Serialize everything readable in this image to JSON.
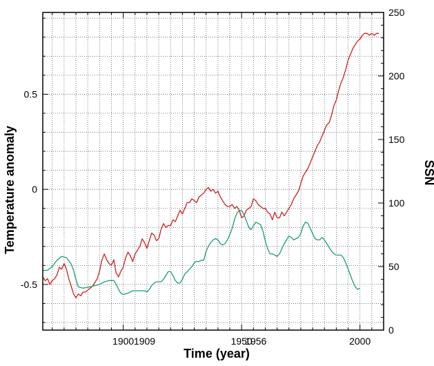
{
  "chart_data": {
    "type": "line",
    "title": "",
    "xlabel": "Time (year)",
    "ylabel_left": "Temperature anomaly",
    "ylabel_right": "SSN",
    "xlim": [
      1866,
      2010
    ],
    "ylim_left": [
      -0.74,
      0.93
    ],
    "ylim_right": [
      0,
      250
    ],
    "grid": true,
    "grid_style": "dotted",
    "x_tick_labels": [
      {
        "x": 1900,
        "label": "1900"
      },
      {
        "x": 1909,
        "label": "1909"
      },
      {
        "x": 1950,
        "label": "1950"
      },
      {
        "x": 1956,
        "label": "1956"
      },
      {
        "x": 2000,
        "label": "2000"
      }
    ],
    "y_left_tick_labels": [
      {
        "y": 0.5,
        "label": "0.5"
      },
      {
        "y": 0,
        "label": "0"
      },
      {
        "y": -0.5,
        "label": "-0.5"
      }
    ],
    "y_right_tick_labels": [
      {
        "y": 0,
        "label": "0"
      },
      {
        "y": 50,
        "label": "50"
      },
      {
        "y": 100,
        "label": "100"
      },
      {
        "y": 150,
        "label": "150"
      },
      {
        "y": 200,
        "label": "200"
      },
      {
        "y": 250,
        "label": "250"
      }
    ],
    "series": [
      {
        "axis": "left",
        "color": "#cc1f1f",
        "points": [
          [
            1866,
            -0.46
          ],
          [
            1867,
            -0.48
          ],
          [
            1868,
            -0.47
          ],
          [
            1869,
            -0.5
          ],
          [
            1870,
            -0.48
          ],
          [
            1871,
            -0.47
          ],
          [
            1872,
            -0.45
          ],
          [
            1873,
            -0.41
          ],
          [
            1874,
            -0.42
          ],
          [
            1875,
            -0.39
          ],
          [
            1876,
            -0.42
          ],
          [
            1877,
            -0.47
          ],
          [
            1878,
            -0.51
          ],
          [
            1879,
            -0.55
          ],
          [
            1880,
            -0.57
          ],
          [
            1881,
            -0.55
          ],
          [
            1882,
            -0.56
          ],
          [
            1883,
            -0.54
          ],
          [
            1884,
            -0.54
          ],
          [
            1885,
            -0.53
          ],
          [
            1886,
            -0.52
          ],
          [
            1887,
            -0.51
          ],
          [
            1888,
            -0.49
          ],
          [
            1889,
            -0.47
          ],
          [
            1890,
            -0.43
          ],
          [
            1891,
            -0.37
          ],
          [
            1892,
            -0.34
          ],
          [
            1893,
            -0.37
          ],
          [
            1894,
            -0.39
          ],
          [
            1895,
            -0.4
          ],
          [
            1896,
            -0.37
          ],
          [
            1897,
            -0.44
          ],
          [
            1898,
            -0.46
          ],
          [
            1899,
            -0.43
          ],
          [
            1900,
            -0.41
          ],
          [
            1901,
            -0.36
          ],
          [
            1902,
            -0.33
          ],
          [
            1903,
            -0.35
          ],
          [
            1904,
            -0.38
          ],
          [
            1905,
            -0.34
          ],
          [
            1906,
            -0.32
          ],
          [
            1907,
            -0.3
          ],
          [
            1908,
            -0.26
          ],
          [
            1909,
            -0.28
          ],
          [
            1910,
            -0.31
          ],
          [
            1911,
            -0.27
          ],
          [
            1912,
            -0.23
          ],
          [
            1913,
            -0.24
          ],
          [
            1914,
            -0.27
          ],
          [
            1915,
            -0.26
          ],
          [
            1916,
            -0.21
          ],
          [
            1917,
            -0.18
          ],
          [
            1918,
            -0.2
          ],
          [
            1919,
            -0.19
          ],
          [
            1920,
            -0.19
          ],
          [
            1921,
            -0.16
          ],
          [
            1922,
            -0.17
          ],
          [
            1923,
            -0.14
          ],
          [
            1924,
            -0.11
          ],
          [
            1925,
            -0.13
          ],
          [
            1926,
            -0.1
          ],
          [
            1927,
            -0.07
          ],
          [
            1928,
            -0.07
          ],
          [
            1929,
            -0.05
          ],
          [
            1930,
            -0.06
          ],
          [
            1931,
            -0.07
          ],
          [
            1932,
            -0.04
          ],
          [
            1933,
            -0.03
          ],
          [
            1934,
            -0.02
          ],
          [
            1935,
            0.0
          ],
          [
            1936,
            0.01
          ],
          [
            1937,
            -0.01
          ],
          [
            1938,
            0.0
          ],
          [
            1939,
            -0.02
          ],
          [
            1940,
            -0.01
          ],
          [
            1941,
            -0.04
          ],
          [
            1942,
            -0.06
          ],
          [
            1943,
            -0.08
          ],
          [
            1944,
            -0.09
          ],
          [
            1945,
            -0.09
          ],
          [
            1946,
            -0.08
          ],
          [
            1947,
            -0.1
          ],
          [
            1948,
            -0.09
          ],
          [
            1949,
            -0.11
          ],
          [
            1950,
            -0.15
          ],
          [
            1951,
            -0.14
          ],
          [
            1952,
            -0.11
          ],
          [
            1953,
            -0.1
          ],
          [
            1954,
            -0.09
          ],
          [
            1955,
            -0.05
          ],
          [
            1956,
            -0.06
          ],
          [
            1957,
            -0.08
          ],
          [
            1958,
            -0.09
          ],
          [
            1959,
            -0.1
          ],
          [
            1960,
            -0.1
          ],
          [
            1961,
            -0.12
          ],
          [
            1962,
            -0.13
          ],
          [
            1963,
            -0.16
          ],
          [
            1964,
            -0.12
          ],
          [
            1965,
            -0.15
          ],
          [
            1966,
            -0.15
          ],
          [
            1967,
            -0.12
          ],
          [
            1968,
            -0.14
          ],
          [
            1969,
            -0.12
          ],
          [
            1970,
            -0.1
          ],
          [
            1971,
            -0.08
          ],
          [
            1972,
            -0.05
          ],
          [
            1973,
            -0.03
          ],
          [
            1974,
            -0.01
          ],
          [
            1975,
            0.03
          ],
          [
            1976,
            0.07
          ],
          [
            1977,
            0.09
          ],
          [
            1978,
            0.11
          ],
          [
            1979,
            0.14
          ],
          [
            1980,
            0.17
          ],
          [
            1981,
            0.2
          ],
          [
            1982,
            0.23
          ],
          [
            1983,
            0.25
          ],
          [
            1984,
            0.28
          ],
          [
            1985,
            0.31
          ],
          [
            1986,
            0.34
          ],
          [
            1987,
            0.35
          ],
          [
            1988,
            0.39
          ],
          [
            1989,
            0.44
          ],
          [
            1990,
            0.47
          ],
          [
            1991,
            0.52
          ],
          [
            1992,
            0.56
          ],
          [
            1993,
            0.59
          ],
          [
            1994,
            0.63
          ],
          [
            1995,
            0.68
          ],
          [
            1996,
            0.71
          ],
          [
            1997,
            0.74
          ],
          [
            1998,
            0.76
          ],
          [
            1999,
            0.78
          ],
          [
            2000,
            0.79
          ],
          [
            2001,
            0.81
          ],
          [
            2002,
            0.82
          ],
          [
            2003,
            0.82
          ],
          [
            2004,
            0.81
          ],
          [
            2005,
            0.82
          ],
          [
            2006,
            0.81
          ],
          [
            2007,
            0.82
          ],
          [
            2008,
            0.82
          ]
        ]
      },
      {
        "axis": "right",
        "color": "#1a9e6a",
        "points": [
          [
            1866,
            47
          ],
          [
            1868,
            47
          ],
          [
            1870,
            50
          ],
          [
            1872,
            55
          ],
          [
            1874,
            58
          ],
          [
            1876,
            57
          ],
          [
            1878,
            52
          ],
          [
            1879,
            47
          ],
          [
            1880,
            40
          ],
          [
            1881,
            34
          ],
          [
            1883,
            33
          ],
          [
            1886,
            34
          ],
          [
            1888,
            35
          ],
          [
            1890,
            36
          ],
          [
            1892,
            38
          ],
          [
            1894,
            39
          ],
          [
            1896,
            39
          ],
          [
            1897,
            36
          ],
          [
            1898,
            32
          ],
          [
            1899,
            29
          ],
          [
            1900,
            28
          ],
          [
            1902,
            29
          ],
          [
            1904,
            31
          ],
          [
            1906,
            31
          ],
          [
            1908,
            31
          ],
          [
            1909,
            31
          ],
          [
            1910,
            30
          ],
          [
            1911,
            32
          ],
          [
            1912,
            35
          ],
          [
            1913,
            37
          ],
          [
            1914,
            38
          ],
          [
            1916,
            38
          ],
          [
            1917,
            40
          ],
          [
            1918,
            43
          ],
          [
            1919,
            46
          ],
          [
            1920,
            46
          ],
          [
            1921,
            43
          ],
          [
            1922,
            39
          ],
          [
            1923,
            37
          ],
          [
            1924,
            37
          ],
          [
            1925,
            40
          ],
          [
            1926,
            44
          ],
          [
            1927,
            46
          ],
          [
            1928,
            48
          ],
          [
            1929,
            50
          ],
          [
            1930,
            53
          ],
          [
            1931,
            54
          ],
          [
            1932,
            54
          ],
          [
            1933,
            55
          ],
          [
            1934,
            55
          ],
          [
            1935,
            62
          ],
          [
            1936,
            66
          ],
          [
            1937,
            69
          ],
          [
            1938,
            71
          ],
          [
            1939,
            72
          ],
          [
            1940,
            71
          ],
          [
            1941,
            68
          ],
          [
            1942,
            67
          ],
          [
            1943,
            68
          ],
          [
            1944,
            71
          ],
          [
            1945,
            75
          ],
          [
            1946,
            80
          ],
          [
            1947,
            87
          ],
          [
            1948,
            92
          ],
          [
            1949,
            94
          ],
          [
            1950,
            94
          ],
          [
            1951,
            91
          ],
          [
            1952,
            86
          ],
          [
            1953,
            81
          ],
          [
            1954,
            79
          ],
          [
            1955,
            82
          ],
          [
            1956,
            85
          ],
          [
            1957,
            84
          ],
          [
            1958,
            83
          ],
          [
            1959,
            78
          ],
          [
            1960,
            70
          ],
          [
            1961,
            64
          ],
          [
            1962,
            60
          ],
          [
            1963,
            60
          ],
          [
            1964,
            59
          ],
          [
            1965,
            58
          ],
          [
            1966,
            60
          ],
          [
            1967,
            64
          ],
          [
            1968,
            68
          ],
          [
            1969,
            71
          ],
          [
            1970,
            74
          ],
          [
            1971,
            73
          ],
          [
            1972,
            71
          ],
          [
            1973,
            72
          ],
          [
            1974,
            73
          ],
          [
            1975,
            76
          ],
          [
            1976,
            82
          ],
          [
            1977,
            85
          ],
          [
            1978,
            84
          ],
          [
            1979,
            80
          ],
          [
            1980,
            76
          ],
          [
            1981,
            72
          ],
          [
            1982,
            71
          ],
          [
            1983,
            71
          ],
          [
            1984,
            73
          ],
          [
            1985,
            71
          ],
          [
            1986,
            68
          ],
          [
            1987,
            65
          ],
          [
            1988,
            62
          ],
          [
            1989,
            60
          ],
          [
            1990,
            59
          ],
          [
            1991,
            59
          ],
          [
            1992,
            59
          ],
          [
            1993,
            57
          ],
          [
            1994,
            53
          ],
          [
            1995,
            48
          ],
          [
            1996,
            43
          ],
          [
            1997,
            38
          ],
          [
            1998,
            34
          ],
          [
            1999,
            32
          ],
          [
            2000,
            33
          ]
        ]
      }
    ]
  }
}
